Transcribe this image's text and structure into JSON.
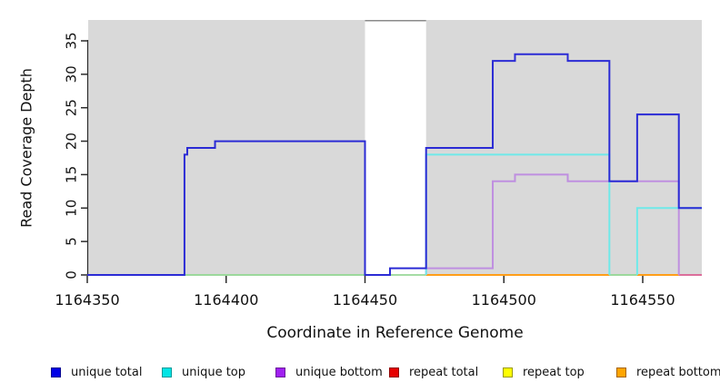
{
  "chart_data": {
    "type": "line",
    "subtype": "step-coverage",
    "title": "",
    "xlabel": "Coordinate in Reference Genome",
    "ylabel": "Read Coverage Depth",
    "xlim": [
      1164350,
      1164572
    ],
    "ylim": [
      0,
      38
    ],
    "x_ticks": [
      1164350,
      1164400,
      1164450,
      1164500,
      1164550
    ],
    "y_ticks": [
      0,
      5,
      10,
      15,
      20,
      25,
      30,
      35
    ],
    "grid": false,
    "panel_background": "#d9d9d9",
    "coverage_gap": {
      "from": 1164450,
      "to": 1164472,
      "fill": "#ffffff",
      "top_border": "#8a8a8a"
    },
    "legend_position": "bottom",
    "series": [
      {
        "name": "unique total",
        "legend_fill": "#0000e6",
        "legend_border": "#000090",
        "line_color": "#2b2bd5",
        "paths": [
          {
            "pts": [
              [
                1164350,
                0
              ],
              [
                1164385,
                18
              ],
              [
                1164386,
                19
              ],
              [
                1164396,
                20
              ],
              [
                1164450,
                0
              ],
              [
                1164459,
                1
              ],
              [
                1164472,
                19
              ],
              [
                1164496,
                32
              ],
              [
                1164504,
                33
              ],
              [
                1164523,
                32
              ],
              [
                1164538,
                14
              ],
              [
                1164548,
                24
              ],
              [
                1164563,
                10
              ]
            ],
            "xend": 1164572
          }
        ]
      },
      {
        "name": "unique top",
        "legend_fill": "#00e5e5",
        "legend_border": "#009999",
        "line_color": "#6fe9e9",
        "paths": [
          {
            "pts": [
              [
                1164472,
                0
              ],
              [
                1164472,
                18
              ],
              [
                1164538,
                0
              ]
            ]
          },
          {
            "pts": [
              [
                1164548,
                0
              ],
              [
                1164548,
                10
              ]
            ],
            "xend": 1164572
          }
        ]
      },
      {
        "name": "unique bottom",
        "legend_fill": "#a020f0",
        "legend_border": "#6a1b9a",
        "line_color": "#bf8fe0",
        "paths": [
          {
            "pts": [
              [
                1164472,
                0
              ],
              [
                1164472,
                1
              ],
              [
                1164496,
                14
              ],
              [
                1164504,
                15
              ],
              [
                1164523,
                14
              ],
              [
                1164563,
                0
              ]
            ]
          }
        ]
      },
      {
        "name": "repeat total",
        "legend_fill": "#e60000",
        "legend_border": "#900000",
        "line_color": "#e60000",
        "constant_value": 0,
        "paths": []
      },
      {
        "name": "repeat top",
        "legend_fill": "#ffff00",
        "legend_border": "#999900",
        "line_color": "#ffff00",
        "constant_value": 0,
        "paths": []
      },
      {
        "name": "repeat bottom",
        "legend_fill": "#ffa500",
        "legend_border": "#a66400",
        "line_color": "#ff9e19",
        "constant_value": 0,
        "paths": []
      }
    ],
    "baseline_segments": [
      {
        "name": "baseline-green",
        "x1": 1164385,
        "x2": 1164450,
        "color": "#9cd89c"
      },
      {
        "name": "baseline-green",
        "x1": 1164459,
        "x2": 1164472,
        "color": "#a5dca5"
      },
      {
        "name": "baseline-orange",
        "x1": 1164472,
        "x2": 1164538,
        "color": "#ff9e19"
      },
      {
        "name": "baseline-green",
        "x1": 1164538,
        "x2": 1164548,
        "color": "#9cd89c"
      },
      {
        "name": "baseline-orange",
        "x1": 1164548,
        "x2": 1164563,
        "color": "#ff9e19"
      },
      {
        "name": "baseline-pink",
        "x1": 1164563,
        "x2": 1164572,
        "color": "#db6e9b"
      }
    ]
  },
  "axis_color": "#2b2b2b"
}
